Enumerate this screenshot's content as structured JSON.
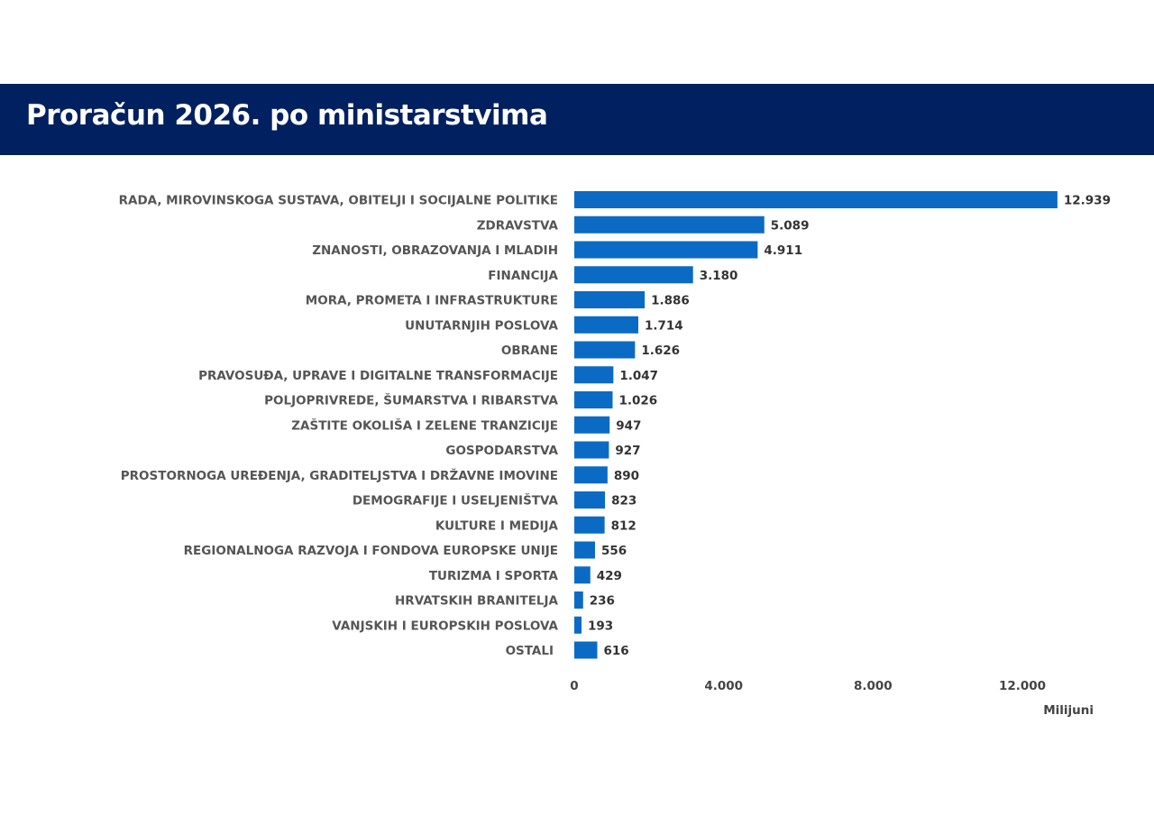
{
  "header": {
    "title": "Proračun 2026. po ministarstvima"
  },
  "colors": {
    "banner": "#002060",
    "bar": "#0B6BC4"
  },
  "chart_data": {
    "type": "bar",
    "orientation": "horizontal",
    "title": "Proračun 2026. po ministarstvima",
    "xlabel": "Milijuni",
    "ylabel": "",
    "xlim": [
      0,
      14000
    ],
    "ticks": [
      0,
      4000,
      8000,
      12000
    ],
    "tick_labels": [
      "0",
      "4.000",
      "8.000",
      "12.000"
    ],
    "grid": false,
    "categories": [
      "RADA, MIROVINSKOGA SUSTAVA, OBITELJI I SOCIJALNE POLITIKE",
      "ZDRAVSTVA",
      "ZNANOSTI, OBRAZOVANJA I MLADIH",
      "FINANCIJA",
      "MORA, PROMETA I INFRASTRUKTURE",
      "UNUTARNJIH POSLOVA",
      "OBRANE",
      "PRAVOSUĐA, UPRAVE I DIGITALNE TRANSFORMACIJE",
      "POLJOPRIVREDE, ŠUMARSTVA I RIBARSTVA",
      "ZAŠTITE OKOLIŠA I ZELENE TRANZICIJE",
      "GOSPODARSTVA",
      "PROSTORNOGA UREĐENJA, GRADITELJSTVA I DRŽAVNE IMOVINE",
      "DEMOGRAFIJE I USELJENIŠTVA",
      "KULTURE I MEDIJA",
      "REGIONALNOGA RAZVOJA I FONDOVA EUROPSKE UNIJE",
      "TURIZMA I SPORTA",
      "HRVATSKIH BRANITELJA",
      "VANJSKIH I EUROPSKIH POSLOVA",
      "OSTALI"
    ],
    "values": [
      12939,
      5089,
      4911,
      3180,
      1886,
      1714,
      1626,
      1047,
      1026,
      947,
      927,
      890,
      823,
      812,
      556,
      429,
      236,
      193,
      616
    ],
    "value_labels": [
      "12.939",
      "5.089",
      "4.911",
      "3.180",
      "1.886",
      "1.714",
      "1.626",
      "1.047",
      "1.026",
      "947",
      "927",
      "890",
      "823",
      "812",
      "556",
      "429",
      "236",
      "193",
      "616"
    ]
  }
}
